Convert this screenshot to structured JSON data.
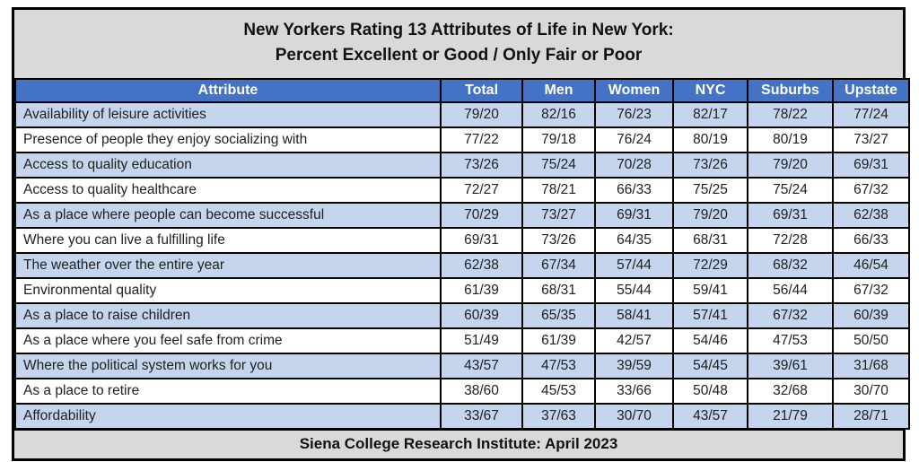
{
  "chart_data": {
    "type": "table",
    "title_line1": "New Yorkers Rating 13 Attributes of Life in New York:",
    "title_line2": "Percent Excellent or Good / Only Fair or Poor",
    "columns": [
      "Attribute",
      "Total",
      "Men",
      "Women",
      "NYC",
      "Suburbs",
      "Upstate"
    ],
    "rows": [
      {
        "attribute": "Availability of leisure activities",
        "values": [
          "79/20",
          "82/16",
          "76/23",
          "82/17",
          "78/22",
          "77/24"
        ]
      },
      {
        "attribute": "Presence of people they enjoy socializing with",
        "values": [
          "77/22",
          "79/18",
          "76/24",
          "80/19",
          "80/19",
          "73/27"
        ]
      },
      {
        "attribute": "Access to quality education",
        "values": [
          "73/26",
          "75/24",
          "70/28",
          "73/26",
          "79/20",
          "69/31"
        ]
      },
      {
        "attribute": "Access to quality healthcare",
        "values": [
          "72/27",
          "78/21",
          "66/33",
          "75/25",
          "75/24",
          "67/32"
        ]
      },
      {
        "attribute": "As a place where people can become successful",
        "values": [
          "70/29",
          "73/27",
          "69/31",
          "79/20",
          "69/31",
          "62/38"
        ]
      },
      {
        "attribute": "Where you can live a fulfilling life",
        "values": [
          "69/31",
          "73/26",
          "64/35",
          "68/31",
          "72/28",
          "66/33"
        ]
      },
      {
        "attribute": "The weather over the entire year",
        "values": [
          "62/38",
          "67/34",
          "57/44",
          "72/29",
          "68/32",
          "46/54"
        ]
      },
      {
        "attribute": "Environmental quality",
        "values": [
          "61/39",
          "68/31",
          "55/44",
          "59/41",
          "56/44",
          "67/32"
        ]
      },
      {
        "attribute": "As a place to raise children",
        "values": [
          "60/39",
          "65/35",
          "58/41",
          "57/41",
          "67/32",
          "60/39"
        ]
      },
      {
        "attribute": "As a place where you feel safe from crime",
        "values": [
          "51/49",
          "61/39",
          "42/57",
          "54/46",
          "47/53",
          "50/50"
        ]
      },
      {
        "attribute": "Where the political system works for you",
        "values": [
          "43/57",
          "47/53",
          "39/59",
          "54/45",
          "39/61",
          "31/68"
        ]
      },
      {
        "attribute": "As a place to retire",
        "values": [
          "38/60",
          "45/53",
          "33/66",
          "50/48",
          "32/68",
          "30/70"
        ]
      },
      {
        "attribute": "Affordability",
        "values": [
          "33/67",
          "37/63",
          "30/70",
          "43/57",
          "21/79",
          "28/71"
        ]
      }
    ],
    "footer": "Siena College Research Institute: April 2023",
    "layout_hints": {
      "banding": "odd rows shaded light blue, even rows white",
      "legend_position": "none",
      "grid": "full black gridlines"
    }
  },
  "colors": {
    "header_bg": "#4472c4",
    "header_text": "#ffffff",
    "band_row_bg": "#c4d5ed",
    "plain_row_bg": "#ffffff",
    "title_footer_bg": "#d9d9d9",
    "border": "#000000",
    "body_text": "#212121"
  }
}
